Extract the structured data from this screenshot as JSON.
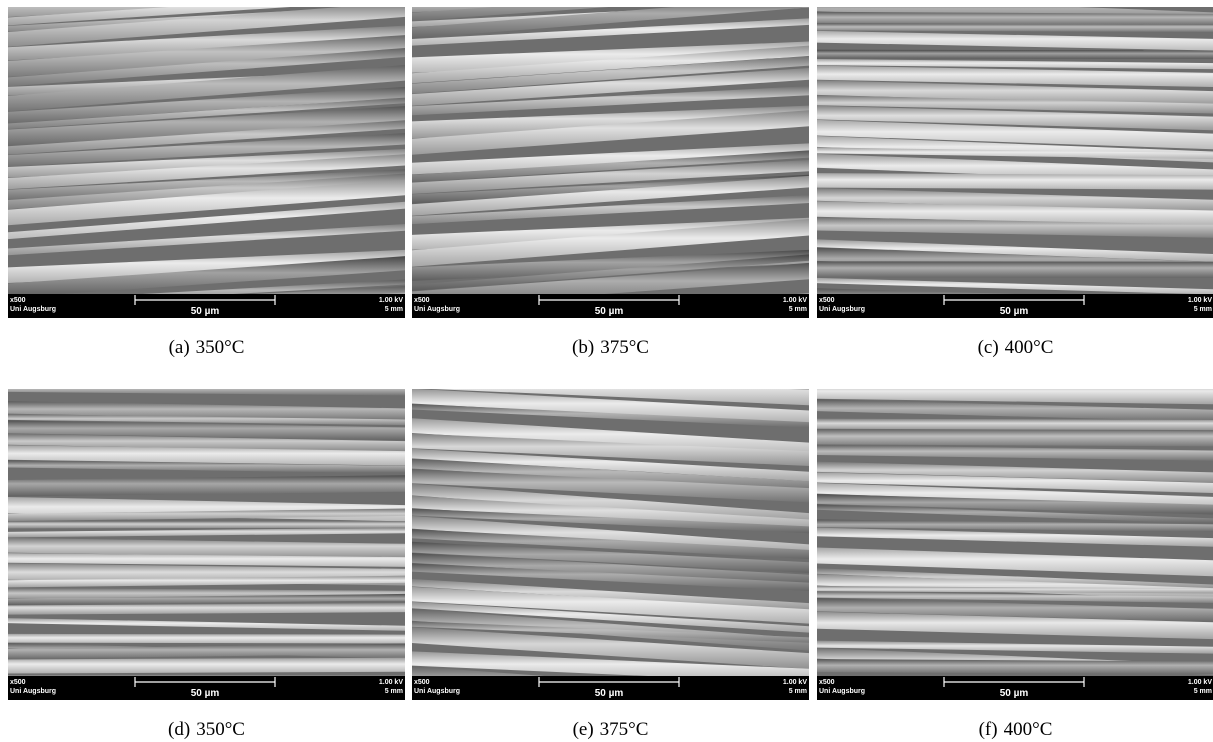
{
  "figure": {
    "panels": [
      {
        "label": "(a)",
        "caption": "350°C"
      },
      {
        "label": "(b)",
        "caption": "375°C"
      },
      {
        "label": "(c)",
        "caption": "400°C"
      },
      {
        "label": "(d)",
        "caption": "350°C"
      },
      {
        "label": "(e)",
        "caption": "375°C"
      },
      {
        "label": "(f)",
        "caption": "400°C"
      }
    ],
    "info_bar": {
      "magnification": "x500",
      "institution": "Uni Augsburg",
      "scale": "50 µm",
      "voltage": "1.00 kV",
      "working_distance": "5 mm"
    }
  }
}
